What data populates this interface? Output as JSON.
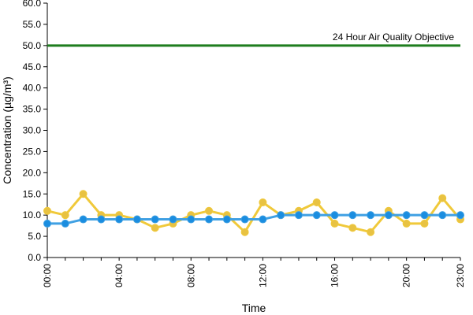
{
  "chart_data": {
    "type": "line",
    "title": "",
    "xlabel": "Time",
    "ylabel": "Concentration (µg/m³)",
    "ylim": [
      0,
      60
    ],
    "y_ticks": [
      "0.0",
      "5.0",
      "10.0",
      "15.0",
      "20.0",
      "25.0",
      "30.0",
      "35.0",
      "40.0",
      "45.0",
      "50.0",
      "55.0",
      "60.0"
    ],
    "x_tick_labels": [
      "00:00",
      "04:00",
      "08:00",
      "12:00",
      "16:00",
      "20:00",
      "23:00"
    ],
    "x_tick_hours": [
      0,
      4,
      8,
      12,
      16,
      20,
      23
    ],
    "x": [
      0,
      1,
      2,
      3,
      4,
      5,
      6,
      7,
      8,
      9,
      10,
      11,
      12,
      13,
      14,
      15,
      16,
      17,
      18,
      19,
      20,
      21,
      22,
      23
    ],
    "grid": false,
    "series": [
      {
        "color": "#f0c93a",
        "marker_color": "#e8c242",
        "values": [
          11,
          10,
          15,
          10,
          10,
          9,
          7,
          8,
          10,
          11,
          10,
          6,
          13,
          10,
          11,
          13,
          8,
          7,
          6,
          11,
          8,
          8,
          14,
          9
        ]
      },
      {
        "color": "#3fa0e3",
        "marker_color": "#1a8de0",
        "values": [
          8,
          8,
          9,
          9,
          9,
          9,
          9,
          9,
          9,
          9,
          9,
          9,
          9,
          10,
          10,
          10,
          10,
          10,
          10,
          10,
          10,
          10,
          10,
          10
        ]
      }
    ],
    "reference_line": {
      "label": "24 Hour Air Quality Objective",
      "value": 50,
      "color": "#1e7d1e"
    }
  }
}
